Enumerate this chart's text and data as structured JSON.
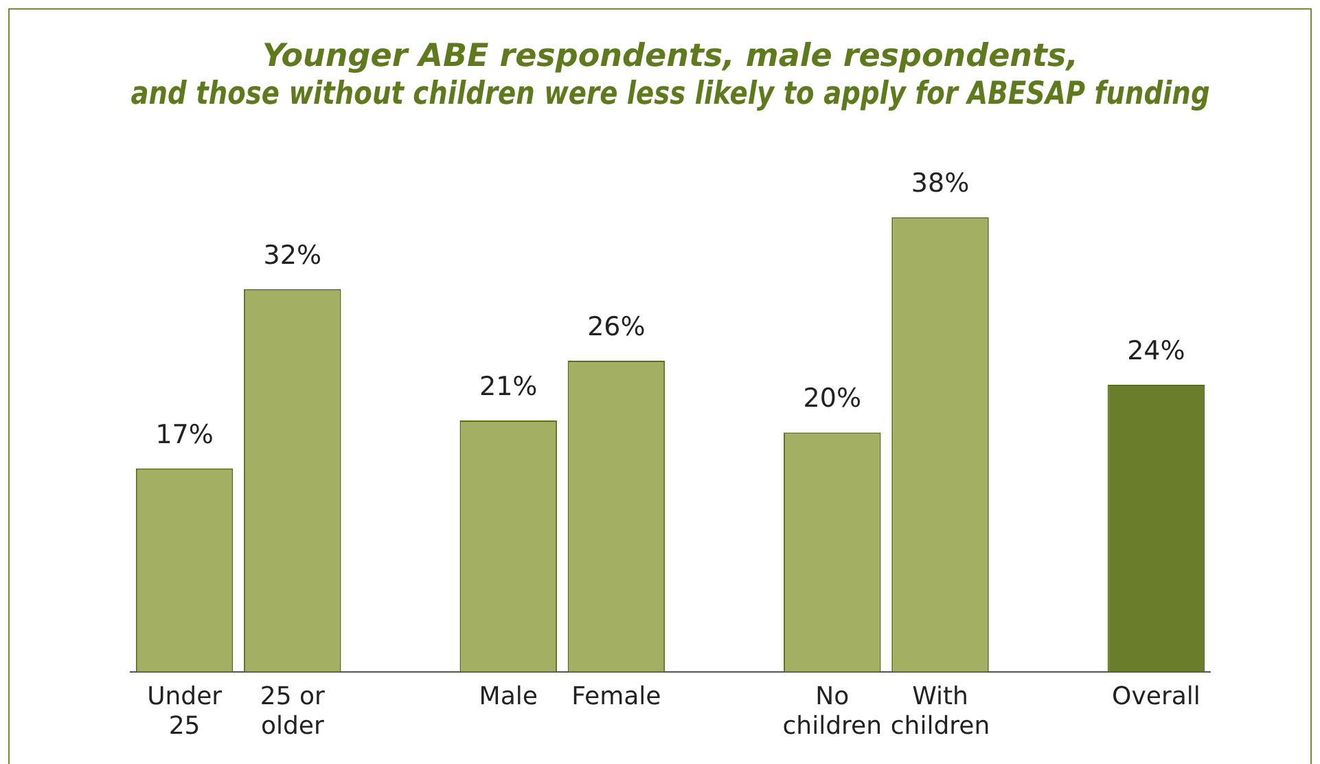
{
  "chart_data": {
    "type": "bar",
    "title": "Younger ABE respondents, male respondents,\nand those without children were less likely to apply for ABESAP funding",
    "categories": [
      "Under\n25",
      "25 or\nolder",
      null,
      "Male",
      "Female",
      null,
      "No\nchildren",
      "With\nchildren",
      null,
      "Overall"
    ],
    "values": [
      17,
      32,
      null,
      21,
      26,
      null,
      20,
      38,
      null,
      24
    ],
    "colors": [
      "#a3b064",
      "#a3b064",
      null,
      "#a3b064",
      "#a3b064",
      null,
      "#a3b064",
      "#a3b064",
      null,
      "#6a7d2a"
    ],
    "value_labels": [
      "17%",
      "32%",
      null,
      "21%",
      "26%",
      null,
      "20%",
      "38%",
      null,
      "24%"
    ],
    "grid": false,
    "legend": false
  }
}
